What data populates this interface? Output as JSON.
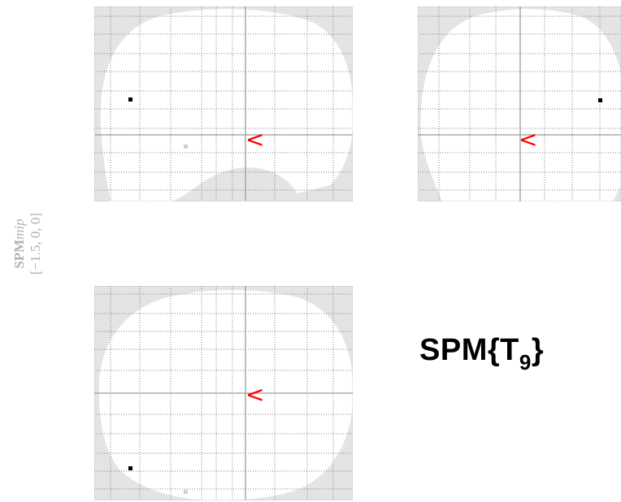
{
  "side_label": {
    "prefix": "SPM",
    "suffix": "mip",
    "coords": "[−1.5, 0, 0]"
  },
  "stat_title": {
    "text": "SPM{T",
    "df": "9",
    "close": "}"
  },
  "colors": {
    "arrow": "#ff0000",
    "grid": "#7f7f7f",
    "mask": "#e4e4e4",
    "brain": "#ffffff",
    "dot": "#000000"
  },
  "icons": {
    "crosshair": "red-chevron-left-arrow"
  }
}
